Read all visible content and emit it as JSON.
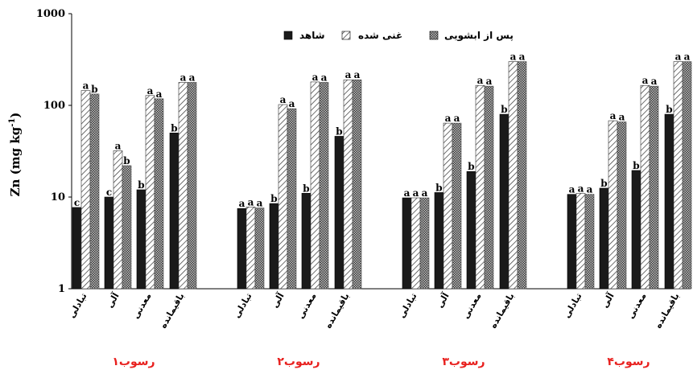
{
  "chart_data": {
    "type": "bar",
    "ylabel": "Zn (mg kg-1)",
    "ylabel_main": "Zn (mg kg",
    "ylabel_sup": "-1",
    "ylabel_end": ")",
    "yscale": "log",
    "ylim": [
      1,
      1000
    ],
    "yticks": [
      "1",
      "10",
      "100",
      "1000"
    ],
    "legend": {
      "placement": "top-center",
      "entries": [
        "شاهد",
        "غنی شده",
        "پس از ابشویی"
      ]
    },
    "colors": [
      "#1a1a1a",
      "#d9d9d9",
      "#9a9a9a"
    ],
    "categories": [
      "تبادلی",
      "آلی",
      "معدنی",
      "باقیمانده"
    ],
    "groups": [
      {
        "name": "رسوب۱",
        "values": [
          [
            7.7,
            145,
            133
          ],
          [
            10,
            32,
            22
          ],
          [
            12,
            128,
            118
          ],
          [
            50,
            178,
            178
          ]
        ],
        "labels": [
          [
            "c",
            "a",
            "b"
          ],
          [
            "c",
            "a",
            "b"
          ],
          [
            "b",
            "a",
            "a"
          ],
          [
            "b",
            "a",
            "a"
          ]
        ]
      },
      {
        "name": "رسوب۲",
        "values": [
          [
            7.5,
            7.8,
            7.6
          ],
          [
            8.5,
            102,
            92
          ],
          [
            11,
            180,
            178
          ],
          [
            46,
            190,
            190
          ]
        ],
        "labels": [
          [
            "a",
            "a",
            "a"
          ],
          [
            "b",
            "a",
            "a"
          ],
          [
            "b",
            "a",
            "a"
          ],
          [
            "b",
            "a",
            "a"
          ]
        ]
      },
      {
        "name": "رسوب۳",
        "values": [
          [
            9.8,
            9.8,
            9.8
          ],
          [
            11.2,
            64,
            64
          ],
          [
            19,
            165,
            162
          ],
          [
            80,
            300,
            300
          ]
        ],
        "labels": [
          [
            "a",
            "a",
            "a"
          ],
          [
            "b",
            "a",
            "a"
          ],
          [
            "b",
            "a",
            "a"
          ],
          [
            "b",
            "a",
            "a"
          ]
        ]
      },
      {
        "name": "رسوب۴",
        "values": [
          [
            10.7,
            11,
            10.7
          ],
          [
            12.5,
            68,
            66
          ],
          [
            19.5,
            165,
            162
          ],
          [
            80,
            300,
            300
          ]
        ],
        "labels": [
          [
            "a",
            "a",
            "a"
          ],
          [
            "b",
            "a",
            "a"
          ],
          [
            "b",
            "a",
            "a"
          ],
          [
            "b",
            "a",
            "a"
          ]
        ]
      }
    ]
  }
}
